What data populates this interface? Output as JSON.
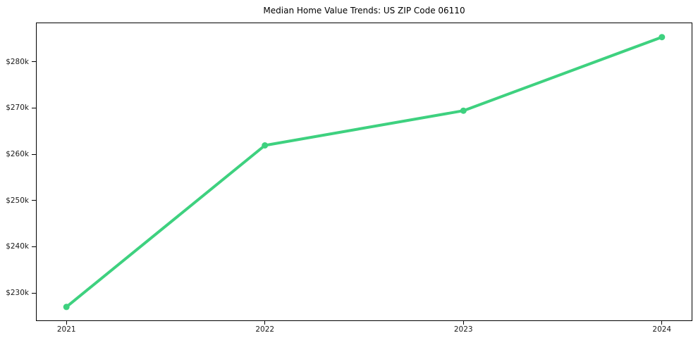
{
  "figure": {
    "background": "#ffffff",
    "frame_color": "#000000",
    "tick_text_color": "#1a1a1a",
    "title_color": "#000000"
  },
  "chart_data": {
    "type": "line",
    "title": "Median Home Value Trends: US ZIP Code 06110",
    "xlabel": "",
    "ylabel": "",
    "x": [
      2021,
      2022,
      2023,
      2024
    ],
    "series": [
      {
        "name": "median-home-value",
        "values": [
          227000,
          261900,
          269400,
          285300
        ],
        "color": "#3ed17f",
        "line_width": 4,
        "marker": "circle",
        "marker_radius": 4.5
      }
    ],
    "xlim": [
      2020.85,
      2024.15
    ],
    "ylim": [
      224100,
      288300
    ],
    "xticks": {
      "values": [
        2021,
        2022,
        2023,
        2024
      ],
      "labels": [
        "2021",
        "2022",
        "2023",
        "2024"
      ]
    },
    "yticks": {
      "values": [
        230000,
        240000,
        250000,
        260000,
        270000,
        280000
      ],
      "labels": [
        "$230k",
        "$240k",
        "$250k",
        "$260k",
        "$270k",
        "$280k"
      ]
    },
    "grid": false,
    "legend": false
  }
}
